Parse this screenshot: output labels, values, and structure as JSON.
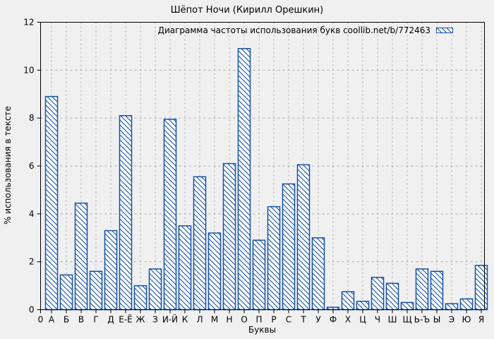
{
  "title": "Шёпот Ночи (Кирилл Орешкин)",
  "legend": {
    "label": "Диаграмма частоты использования букв coollib.net/b/772463"
  },
  "axes": {
    "x_label": "Буквы",
    "y_label": "% использования в тексте",
    "origin_label": "0"
  },
  "colors": {
    "background": "#f0f0f0",
    "bar_stroke": "#1450a8",
    "bar_fill": "#ffffff",
    "grid": "#a8a8a8",
    "border": "#000000",
    "text": "#000000"
  },
  "chart_data": {
    "type": "bar",
    "title": "Шёпот Ночи (Кирилл Орешкин)",
    "xlabel": "Буквы",
    "ylabel": "% использования в тексте",
    "ylim": [
      0,
      12
    ],
    "yticks": [
      0,
      2,
      4,
      6,
      8,
      10,
      12
    ],
    "grid": true,
    "legend": "Диаграмма частоты использования букв coollib.net/b/772463",
    "legend_position": "top-right-inside",
    "hatch": "diagonal-backslash",
    "bar_color": "#1450a8",
    "categories": [
      "А",
      "Б",
      "В",
      "Г",
      "Д",
      "Е-Ё",
      "Ж",
      "З",
      "И-Й",
      "К",
      "Л",
      "М",
      "Н",
      "О",
      "П",
      "Р",
      "С",
      "Т",
      "У",
      "Ф",
      "Х",
      "Ц",
      "Ч",
      "Ш",
      "Щ",
      "Ь-Ъ",
      "Ы",
      "Э",
      "Ю",
      "Я"
    ],
    "values": [
      8.9,
      1.45,
      4.45,
      1.6,
      3.3,
      8.1,
      1.0,
      1.7,
      7.95,
      3.5,
      5.55,
      3.2,
      6.1,
      10.9,
      2.9,
      4.3,
      5.25,
      6.05,
      3.0,
      0.1,
      0.75,
      0.35,
      1.35,
      1.1,
      0.3,
      1.7,
      1.6,
      0.25,
      0.45,
      1.85
    ]
  }
}
